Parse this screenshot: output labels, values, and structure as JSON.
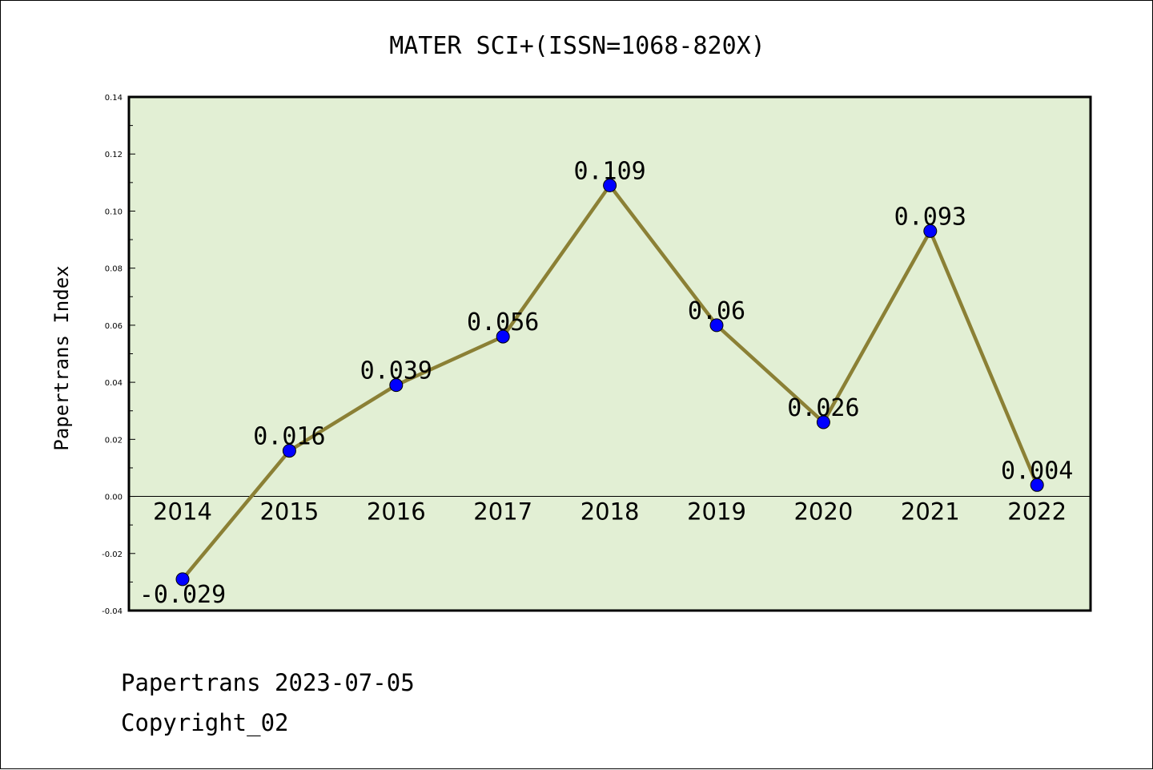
{
  "chart_data": {
    "type": "line",
    "title": "MATER SCI+(ISSN=1068-820X)",
    "xlabel": "",
    "ylabel": "Papertrans Index",
    "categories": [
      "2014",
      "2015",
      "2016",
      "2017",
      "2018",
      "2019",
      "2020",
      "2021",
      "2022"
    ],
    "series": [
      {
        "values": [
          -0.029,
          0.016,
          0.039,
          0.056,
          0.109,
          0.06,
          0.026,
          0.093,
          0.004
        ],
        "labels": [
          "-0.029",
          "0.016",
          "0.039",
          "0.056",
          "0.109",
          "0.06",
          "0.026",
          "0.093",
          "0.004"
        ]
      }
    ],
    "ylim": [
      -0.04,
      0.14
    ],
    "yticks": [
      -0.04,
      -0.02,
      0.0,
      0.02,
      0.04,
      0.06,
      0.08,
      0.1,
      0.12,
      0.14
    ],
    "ytick_labels": [
      "-0.04",
      "-0.02",
      "0.00",
      "0.02",
      "0.04",
      "0.06",
      "0.08",
      "0.10",
      "0.12",
      "0.14"
    ],
    "grid": false,
    "legend": "none",
    "colors": {
      "plot_background": "#e2efd4",
      "line": "#8b8035",
      "marker": "#0000ff",
      "axes": "#000000"
    }
  },
  "footer": {
    "line1": "Papertrans 2023-07-05",
    "line2": "Copyright_02"
  }
}
